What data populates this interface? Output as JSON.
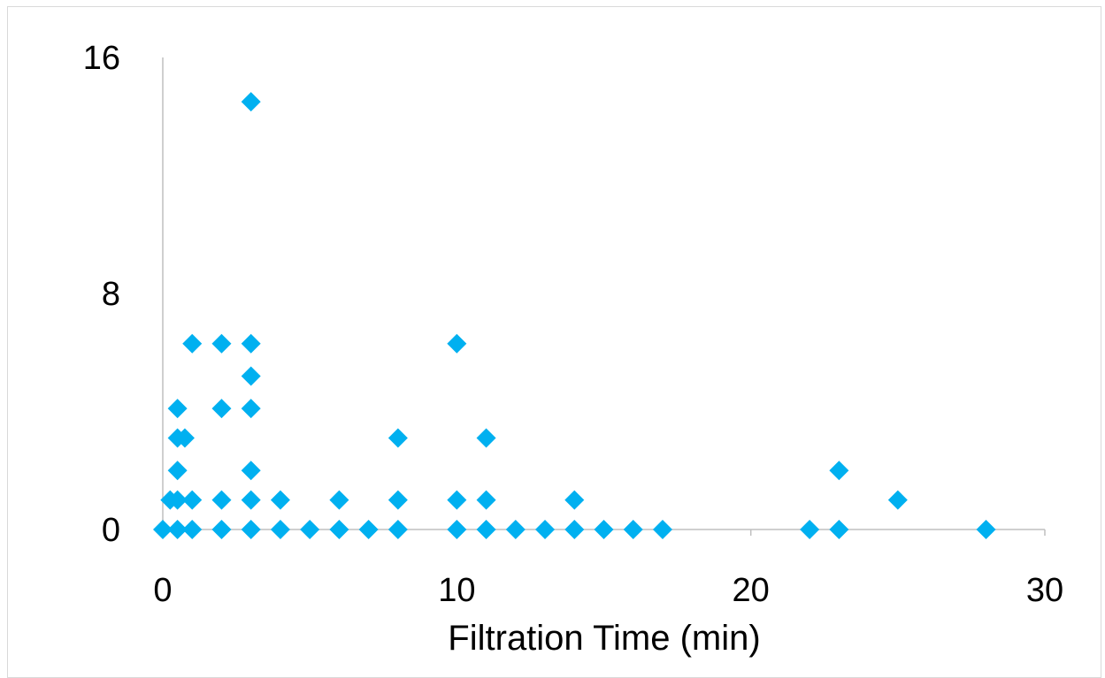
{
  "chart_data": {
    "type": "scatter",
    "title": "",
    "xlabel": "Filtration Time (min)",
    "ylabel": "",
    "xlim": [
      0,
      30
    ],
    "ylim": [
      0,
      16
    ],
    "x_ticks": [
      "0",
      "10",
      "20",
      "30"
    ],
    "y_ticks": [
      "0",
      "8",
      "16"
    ],
    "grid": false,
    "legend": "none",
    "marker": "diamond",
    "marker_color": "#00B0F0",
    "series": [
      {
        "points": [
          {
            "x": 3,
            "y": 14.5
          },
          {
            "x": 1,
            "y": 6.3
          },
          {
            "x": 2,
            "y": 6.3
          },
          {
            "x": 3,
            "y": 6.3
          },
          {
            "x": 10,
            "y": 6.3
          },
          {
            "x": 3,
            "y": 5.2
          },
          {
            "x": 0.5,
            "y": 4.1
          },
          {
            "x": 2,
            "y": 4.1
          },
          {
            "x": 3,
            "y": 4.1
          },
          {
            "x": 0.5,
            "y": 3.1
          },
          {
            "x": 0.75,
            "y": 3.1
          },
          {
            "x": 8,
            "y": 3.1
          },
          {
            "x": 11,
            "y": 3.1
          },
          {
            "x": 0.5,
            "y": 2
          },
          {
            "x": 3,
            "y": 2
          },
          {
            "x": 23,
            "y": 2
          },
          {
            "x": 0.25,
            "y": 1
          },
          {
            "x": 0.5,
            "y": 1
          },
          {
            "x": 1,
            "y": 1
          },
          {
            "x": 2,
            "y": 1
          },
          {
            "x": 3,
            "y": 1
          },
          {
            "x": 4,
            "y": 1
          },
          {
            "x": 6,
            "y": 1
          },
          {
            "x": 8,
            "y": 1
          },
          {
            "x": 10,
            "y": 1
          },
          {
            "x": 11,
            "y": 1
          },
          {
            "x": 14,
            "y": 1
          },
          {
            "x": 25,
            "y": 1
          },
          {
            "x": 0,
            "y": 0
          },
          {
            "x": 0.5,
            "y": 0
          },
          {
            "x": 1,
            "y": 0
          },
          {
            "x": 2,
            "y": 0
          },
          {
            "x": 3,
            "y": 0
          },
          {
            "x": 4,
            "y": 0
          },
          {
            "x": 5,
            "y": 0
          },
          {
            "x": 6,
            "y": 0
          },
          {
            "x": 7,
            "y": 0
          },
          {
            "x": 8,
            "y": 0
          },
          {
            "x": 10,
            "y": 0
          },
          {
            "x": 11,
            "y": 0
          },
          {
            "x": 12,
            "y": 0
          },
          {
            "x": 13,
            "y": 0
          },
          {
            "x": 14,
            "y": 0
          },
          {
            "x": 15,
            "y": 0
          },
          {
            "x": 16,
            "y": 0
          },
          {
            "x": 17,
            "y": 0
          },
          {
            "x": 22,
            "y": 0
          },
          {
            "x": 23,
            "y": 0
          },
          {
            "x": 28,
            "y": 0
          }
        ]
      }
    ]
  }
}
